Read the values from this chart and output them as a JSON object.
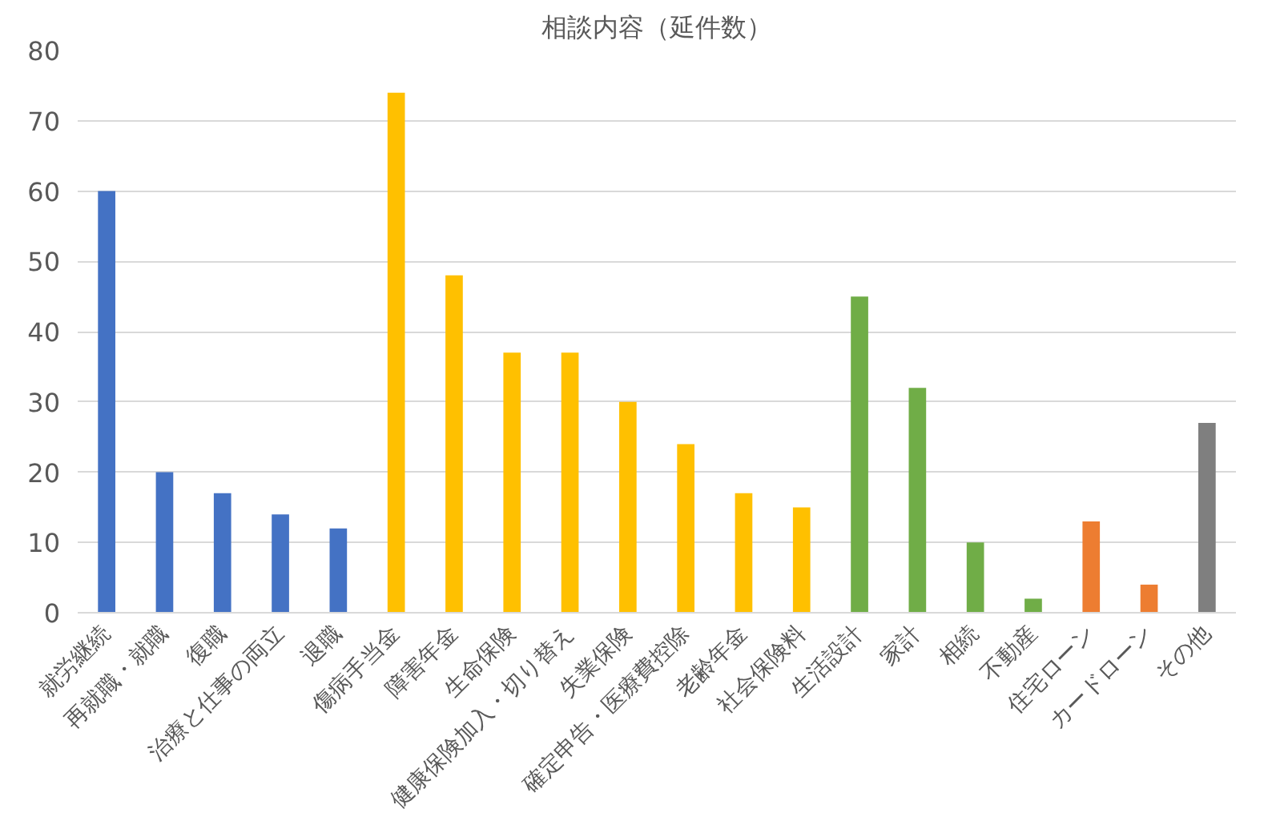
{
  "chart_data": {
    "type": "bar",
    "title": "相談内容（延件数）",
    "categories": [
      "就労継続",
      "再就職・就職",
      "復職",
      "治療と仕事の両立",
      "退職",
      "傷病手当金",
      "障害年金",
      "生命保険",
      "健康保険加入・切り替え",
      "失業保険",
      "確定申告・医療費控除",
      "老齢年金",
      "社会保険料",
      "生活設計",
      "家計",
      "相続",
      "不動産",
      "住宅ローン",
      "カードローン",
      "その他"
    ],
    "values": [
      60,
      20,
      17,
      14,
      12,
      74,
      48,
      37,
      37,
      30,
      24,
      17,
      15,
      45,
      32,
      10,
      2,
      13,
      4,
      27
    ],
    "colors": [
      "#4472c4",
      "#4472c4",
      "#4472c4",
      "#4472c4",
      "#4472c4",
      "#ffc000",
      "#ffc000",
      "#ffc000",
      "#ffc000",
      "#ffc000",
      "#ffc000",
      "#ffc000",
      "#ffc000",
      "#70ad47",
      "#70ad47",
      "#70ad47",
      "#70ad47",
      "#ed7d31",
      "#ed7d31",
      "#7f7f7f"
    ],
    "ylim": [
      0,
      80
    ],
    "yticks": [
      0,
      10,
      20,
      30,
      40,
      50,
      60,
      70,
      80
    ],
    "grid": "y"
  }
}
